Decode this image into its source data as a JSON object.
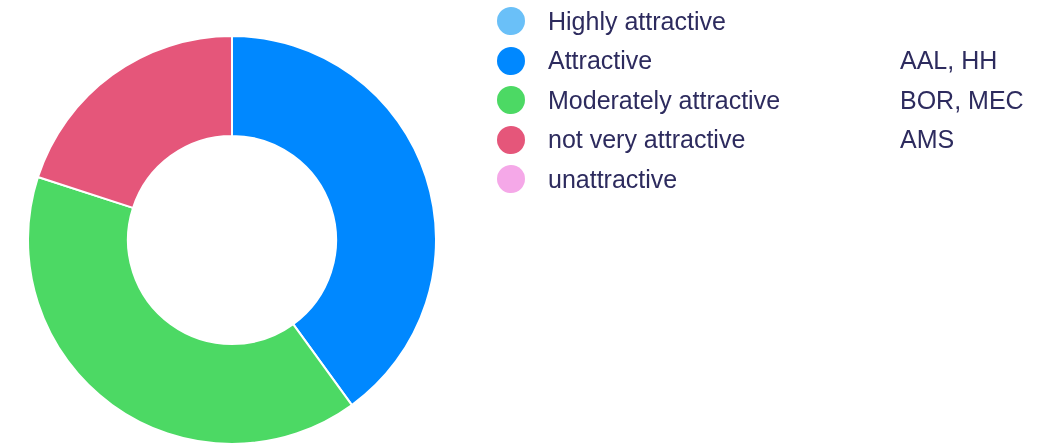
{
  "chart_data": {
    "type": "donut",
    "categories": [
      "Highly attractive",
      "Attractive",
      "Moderately attractive",
      "not very attractive",
      "unattractive"
    ],
    "values": [
      0,
      40,
      40,
      20,
      0
    ],
    "colors": [
      "#6ac0f8",
      "#0088ff",
      "#4cd964",
      "#e5567a",
      "#f5a8e8"
    ],
    "legend": "right",
    "annotations": [
      "AAL, HH",
      "BOR, MEC",
      "AMS"
    ]
  }
}
